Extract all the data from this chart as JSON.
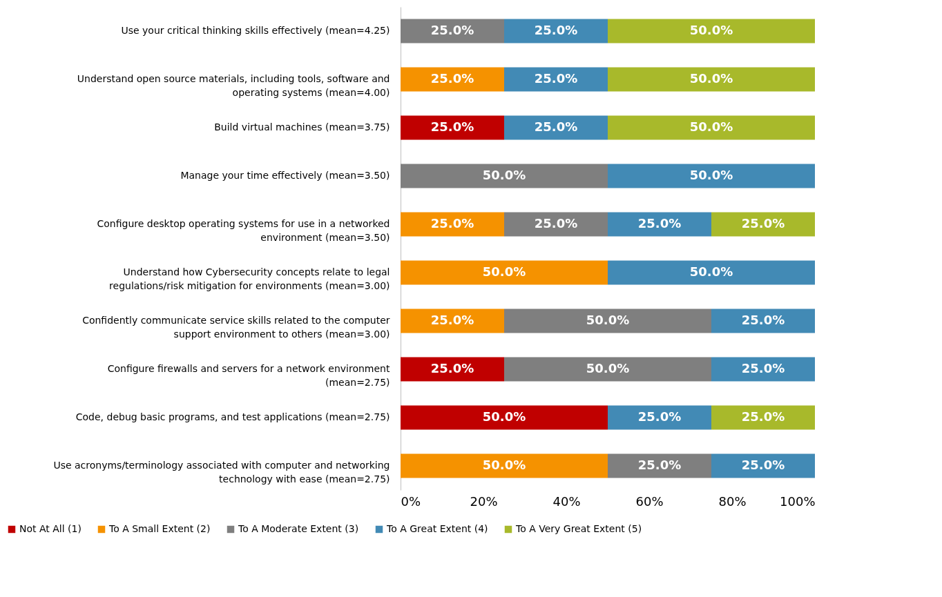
{
  "chart_data": {
    "type": "bar",
    "orientation": "horizontal",
    "stacked": true,
    "legend": "bottom",
    "grid": false,
    "categories": [
      "Use your critical thinking skills effectively (mean=4.25)",
      "Understand open source materials, including tools, software and operating systems (mean=4.00)",
      "Build virtual machines (mean=3.75)",
      "Manage your time effectively (mean=3.50)",
      "Configure desktop operating systems for use in a networked environment (mean=3.50)",
      "Understand how Cybersecurity concepts relate to legal regulations/risk mitigation for environments (mean=3.00)",
      "Confidently communicate service skills related to the computer support environment to others (mean=3.00)",
      "Configure firewalls and servers for a network environment (mean=2.75)",
      "Code, debug basic programs, and test applications (mean=2.75)",
      "Use acronyms/terminology associated with computer and networking technology with ease (mean=2.75)"
    ],
    "xlim": [
      0,
      100
    ],
    "xticks": [
      {
        "value": 0,
        "label": "0%"
      },
      {
        "value": 20,
        "label": "20%"
      },
      {
        "value": 40,
        "label": "40%"
      },
      {
        "value": 60,
        "label": "60%"
      },
      {
        "value": 80,
        "label": "80%"
      },
      {
        "value": 100,
        "label": "100%"
      }
    ],
    "series": [
      {
        "name": "Not At All (1)",
        "color": "#c00000",
        "values": [
          null,
          null,
          25,
          null,
          null,
          null,
          null,
          25,
          50,
          null
        ],
        "value_labels": [
          null,
          null,
          "25.0%",
          null,
          null,
          null,
          null,
          "25.0%",
          "50.0%",
          null
        ]
      },
      {
        "name": "To A Small Extent (2)",
        "color": "#f59200",
        "values": [
          null,
          25,
          null,
          null,
          25,
          50,
          25,
          null,
          null,
          50
        ],
        "value_labels": [
          null,
          "25.0%",
          null,
          null,
          "25.0%",
          "50.0%",
          "25.0%",
          null,
          null,
          "50.0%"
        ]
      },
      {
        "name": "To A Moderate Extent (3)",
        "color": "#7f7f7f",
        "values": [
          25,
          null,
          null,
          50,
          25,
          null,
          50,
          50,
          null,
          25
        ],
        "value_labels": [
          "25.0%",
          null,
          null,
          "50.0%",
          "25.0%",
          null,
          "50.0%",
          "50.0%",
          null,
          "25.0%"
        ]
      },
      {
        "name": "To A Great Extent (4)",
        "color": "#428ab5",
        "values": [
          25,
          25,
          25,
          50,
          25,
          50,
          25,
          25,
          25,
          25
        ],
        "value_labels": [
          "25.0%",
          "25.0%",
          "25.0%",
          "50.0%",
          "25.0%",
          "50.0%",
          "25.0%",
          "25.0%",
          "25.0%",
          "25.0%"
        ]
      },
      {
        "name": "To A Very Great Extent (5)",
        "color": "#a8b92b",
        "values": [
          50,
          50,
          50,
          null,
          25,
          null,
          null,
          null,
          25,
          null
        ],
        "value_labels": [
          "50.0%",
          "50.0%",
          "50.0%",
          null,
          "25.0%",
          null,
          null,
          null,
          "25.0%",
          null
        ]
      }
    ]
  }
}
